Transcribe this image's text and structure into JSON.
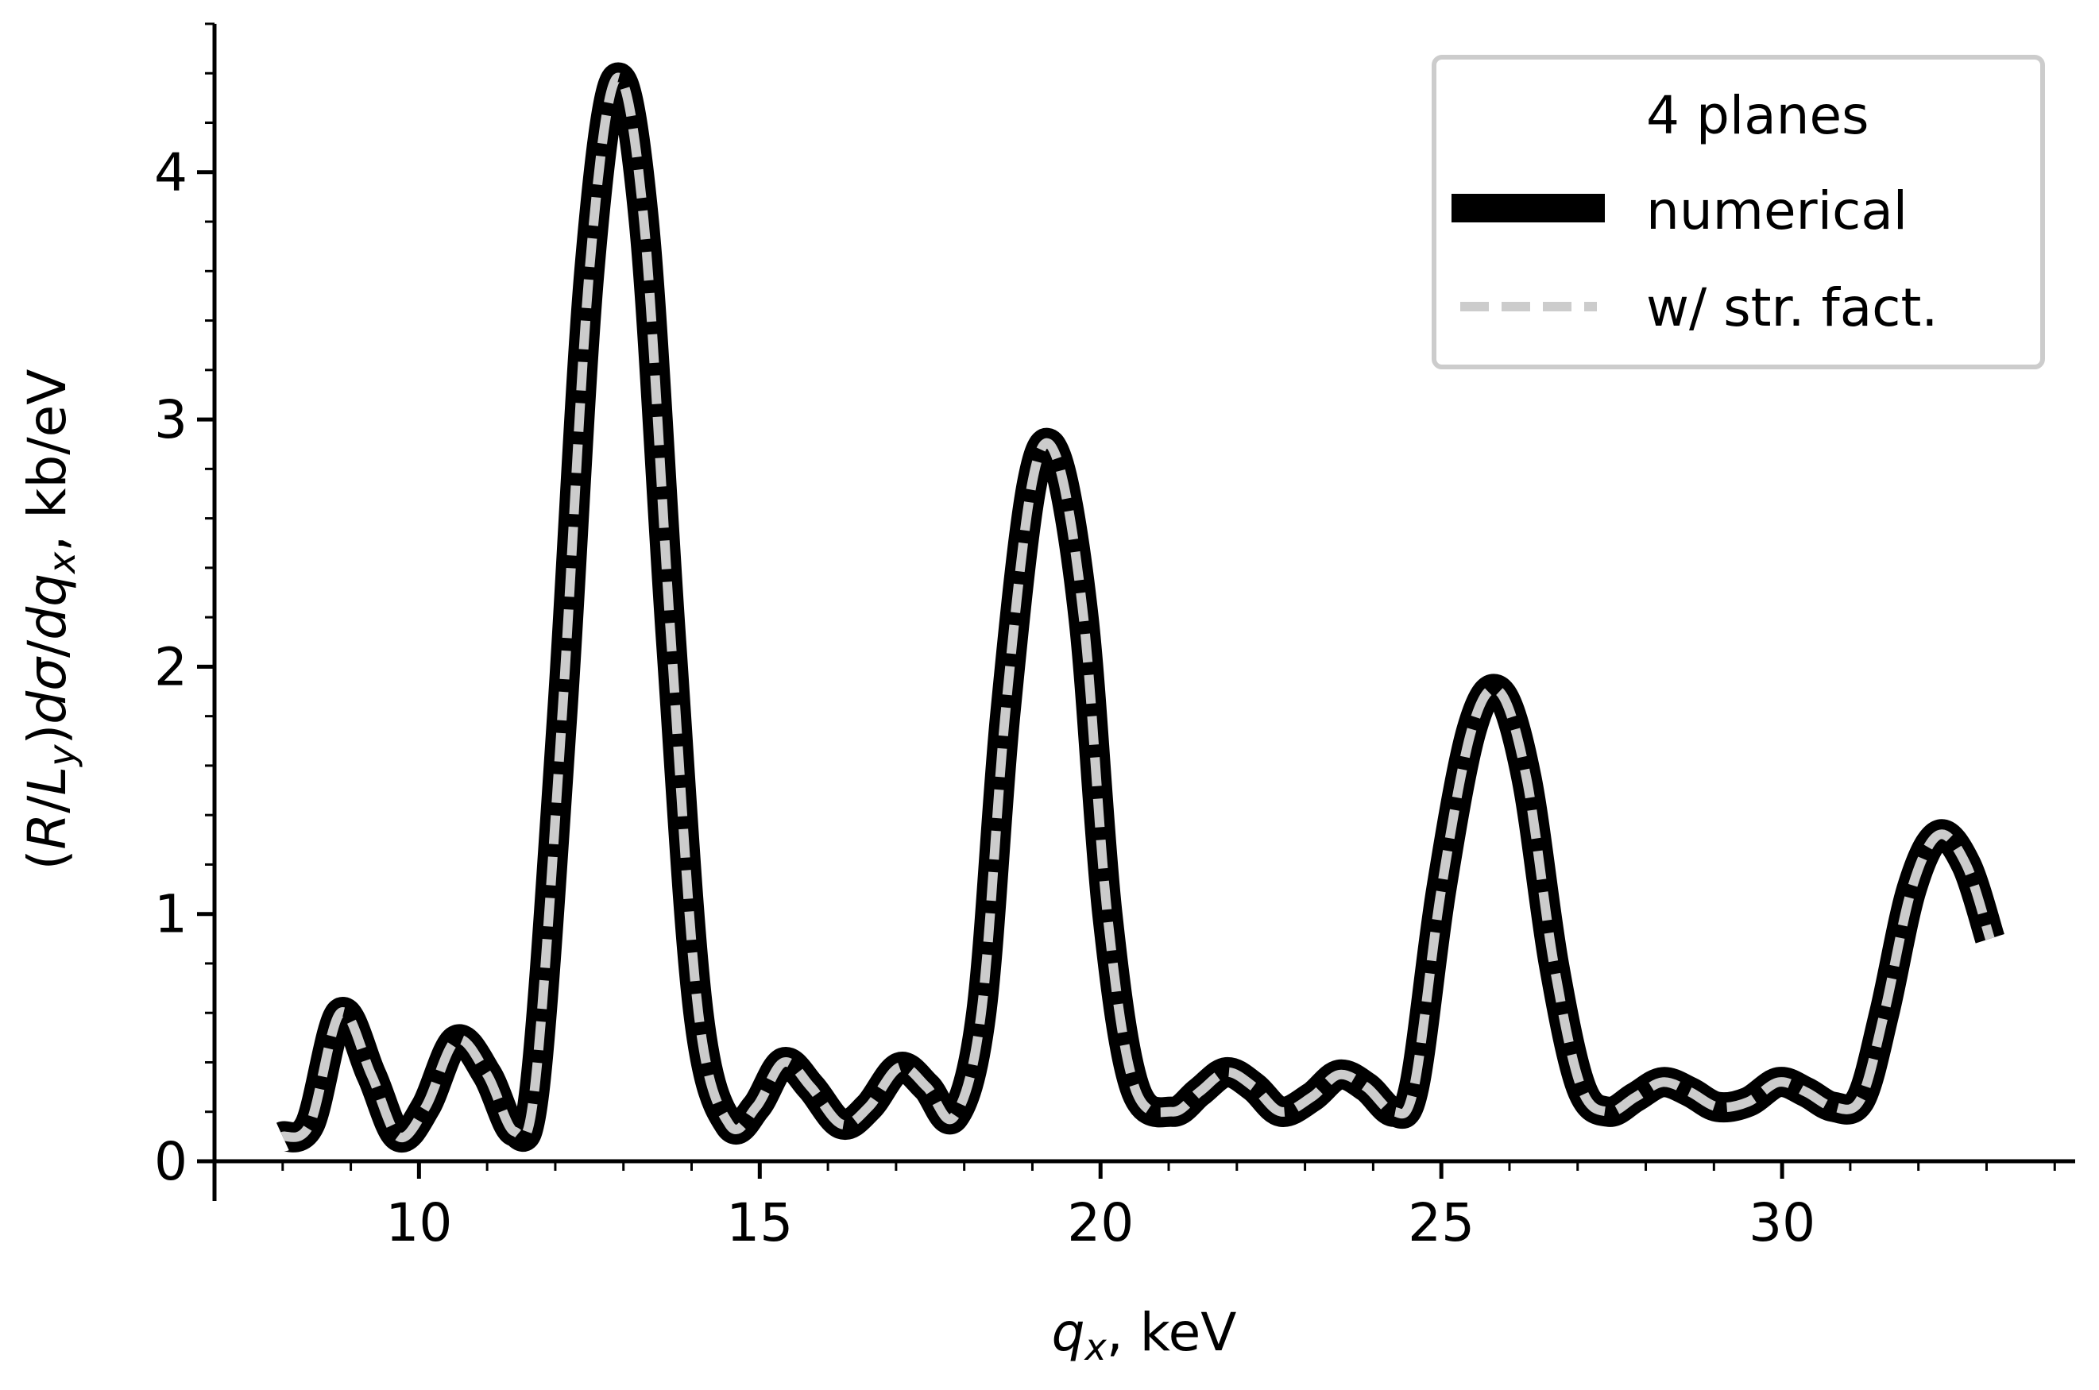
{
  "chart_data": {
    "type": "line",
    "xlabel": {
      "main": "q",
      "sub": "x",
      "unit": ", keV"
    },
    "ylabel": {
      "lead": "(",
      "R": "R",
      "slash1": "/",
      "L": "L",
      "Lsub": "y",
      "close": ")",
      "d1": "d",
      "sigma": "σ",
      "slash2": "/",
      "d2": "d",
      "q": "q",
      "qsub": "x",
      "unit": ", kb/eV"
    },
    "xlim": [
      7,
      34.3
    ],
    "ylim": [
      0,
      4.6
    ],
    "xticks": [
      10,
      15,
      20,
      25,
      30
    ],
    "yticks": [
      0,
      1,
      2,
      3,
      4
    ],
    "grid": false,
    "legend": {
      "placement": "top-right",
      "title": "4 planes",
      "entries": [
        "numerical",
        "w/ str. fact."
      ]
    },
    "series": [
      {
        "name": "numerical",
        "color": "#000000",
        "style": "solid",
        "x": [
          8.0,
          8.4,
          8.85,
          9.3,
          9.7,
          10.1,
          10.55,
          11.0,
          11.4,
          11.7,
          12.1,
          12.5,
          12.9,
          13.3,
          13.7,
          14.1,
          14.55,
          14.95,
          15.35,
          15.75,
          16.2,
          16.6,
          17.05,
          17.45,
          17.85,
          18.25,
          18.6,
          19.0,
          19.35,
          19.75,
          20.1,
          20.5,
          21.05,
          21.45,
          21.85,
          22.25,
          22.65,
          23.1,
          23.5,
          23.9,
          24.3,
          24.6,
          25.0,
          25.45,
          25.85,
          26.25,
          26.65,
          27.05,
          27.45,
          27.85,
          28.25,
          28.65,
          29.05,
          29.5,
          29.95,
          30.35,
          30.75,
          31.15,
          31.5,
          31.9,
          32.3,
          32.7,
          33.05
        ],
        "y": [
          0.1,
          0.15,
          0.6,
          0.35,
          0.1,
          0.22,
          0.49,
          0.35,
          0.12,
          0.3,
          1.8,
          3.6,
          4.38,
          3.8,
          2.1,
          0.6,
          0.15,
          0.22,
          0.4,
          0.3,
          0.15,
          0.22,
          0.38,
          0.3,
          0.18,
          0.6,
          1.8,
          2.75,
          2.85,
          2.2,
          1.0,
          0.3,
          0.2,
          0.28,
          0.36,
          0.3,
          0.2,
          0.26,
          0.35,
          0.3,
          0.2,
          0.3,
          1.1,
          1.75,
          1.9,
          1.55,
          0.8,
          0.3,
          0.2,
          0.26,
          0.32,
          0.28,
          0.22,
          0.24,
          0.32,
          0.28,
          0.22,
          0.25,
          0.6,
          1.1,
          1.32,
          1.2,
          0.9
        ]
      },
      {
        "name": "w/ str. fact.",
        "color": "#cccccc",
        "style": "dashed",
        "x": [
          8.0,
          8.4,
          8.85,
          9.3,
          9.7,
          10.1,
          10.55,
          11.0,
          11.4,
          11.7,
          12.1,
          12.5,
          12.9,
          13.3,
          13.7,
          14.1,
          14.55,
          14.95,
          15.35,
          15.75,
          16.2,
          16.6,
          17.05,
          17.45,
          17.85,
          18.25,
          18.6,
          19.0,
          19.35,
          19.75,
          20.1,
          20.5,
          21.05,
          21.45,
          21.85,
          22.25,
          22.65,
          23.1,
          23.5,
          23.9,
          24.3,
          24.6,
          25.0,
          25.45,
          25.85,
          26.25,
          26.65,
          27.05,
          27.45,
          27.85,
          28.25,
          28.65,
          29.05,
          29.5,
          29.95,
          30.35,
          30.75,
          31.15,
          31.5,
          31.9,
          32.3,
          32.7,
          33.05
        ],
        "y": [
          0.1,
          0.15,
          0.6,
          0.35,
          0.1,
          0.22,
          0.49,
          0.35,
          0.12,
          0.3,
          1.8,
          3.6,
          4.38,
          3.8,
          2.1,
          0.6,
          0.15,
          0.22,
          0.4,
          0.3,
          0.15,
          0.22,
          0.38,
          0.3,
          0.18,
          0.6,
          1.8,
          2.75,
          2.85,
          2.2,
          1.0,
          0.3,
          0.2,
          0.28,
          0.36,
          0.3,
          0.2,
          0.26,
          0.35,
          0.3,
          0.2,
          0.3,
          1.1,
          1.75,
          1.9,
          1.55,
          0.8,
          0.3,
          0.2,
          0.26,
          0.32,
          0.28,
          0.22,
          0.24,
          0.32,
          0.28,
          0.22,
          0.25,
          0.6,
          1.1,
          1.32,
          1.2,
          0.9
        ]
      }
    ]
  }
}
